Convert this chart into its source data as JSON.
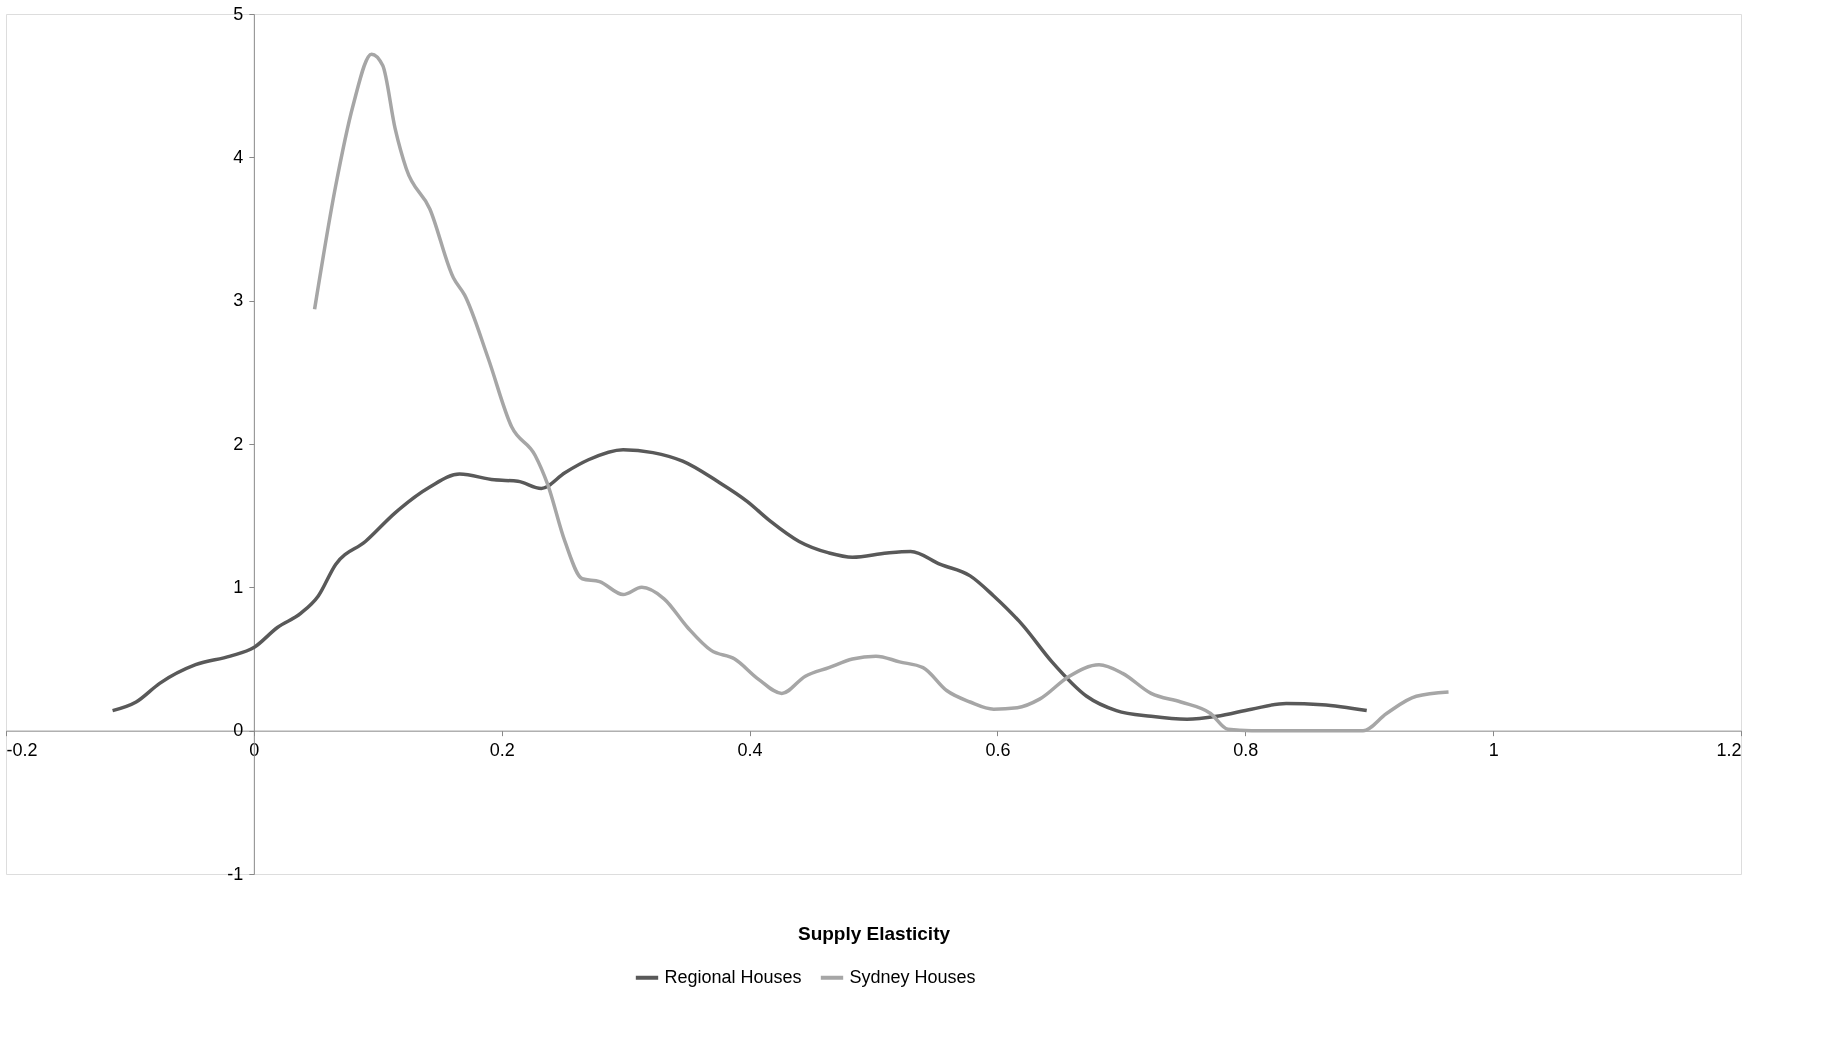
{
  "chart_data": {
    "type": "line",
    "xlabel": "Supply Elasticity",
    "xlim": [
      -0.2,
      1.2
    ],
    "xticks": [
      -0.2,
      0,
      0.2,
      0.4,
      0.6,
      0.8,
      1,
      1.2
    ],
    "ylim": [
      -1,
      5
    ],
    "yticks": [
      -1,
      0,
      1,
      2,
      3,
      4,
      5
    ],
    "grid": false,
    "legend": "bottom",
    "line_style": "solid",
    "marker": "none",
    "series": [
      {
        "name": "Regional Houses",
        "color": "#595959",
        "x": [
          -0.114,
          -0.095,
          -0.076,
          -0.047,
          -0.019,
          0,
          0.019,
          0.038,
          0.052,
          0.066,
          0.09,
          0.114,
          0.142,
          0.166,
          0.194,
          0.213,
          0.232,
          0.251,
          0.27,
          0.298,
          0.322,
          0.346,
          0.374,
          0.398,
          0.417,
          0.44,
          0.464,
          0.483,
          0.511,
          0.53,
          0.554,
          0.578,
          0.597,
          0.62,
          0.644,
          0.672,
          0.696,
          0.724,
          0.753,
          0.777,
          0.805,
          0.833,
          0.862,
          0.898
        ],
        "values": [
          0.14,
          0.2,
          0.33,
          0.46,
          0.52,
          0.58,
          0.72,
          0.82,
          0.94,
          1.16,
          1.32,
          1.52,
          1.7,
          1.79,
          1.75,
          1.74,
          1.69,
          1.8,
          1.89,
          1.96,
          1.94,
          1.88,
          1.74,
          1.6,
          1.46,
          1.32,
          1.24,
          1.21,
          1.24,
          1.25,
          1.16,
          1.08,
          0.94,
          0.74,
          0.48,
          0.24,
          0.14,
          0.1,
          0.08,
          0.1,
          0.15,
          0.19,
          0.18,
          0.14
        ]
      },
      {
        "name": "Sydney Houses",
        "color": "#a6a6a6",
        "x": [
          0.049,
          0.066,
          0.08,
          0.095,
          0.104,
          0.114,
          0.123,
          0.142,
          0.161,
          0.17,
          0.189,
          0.208,
          0.227,
          0.237,
          0.251,
          0.265,
          0.279,
          0.298,
          0.313,
          0.331,
          0.35,
          0.369,
          0.388,
          0.407,
          0.426,
          0.445,
          0.464,
          0.483,
          0.502,
          0.521,
          0.54,
          0.559,
          0.578,
          0.597,
          0.616,
          0.634,
          0.658,
          0.682,
          0.701,
          0.724,
          0.748,
          0.772,
          0.786,
          0.805,
          0.895,
          0.914,
          0.938,
          0.964
        ],
        "values": [
          2.94,
          3.8,
          4.36,
          4.72,
          4.64,
          4.2,
          3.92,
          3.64,
          3.16,
          3.04,
          2.6,
          2.12,
          1.92,
          1.72,
          1.32,
          1.06,
          1.04,
          0.95,
          1.0,
          0.92,
          0.72,
          0.56,
          0.5,
          0.36,
          0.26,
          0.38,
          0.44,
          0.5,
          0.52,
          0.48,
          0.44,
          0.28,
          0.2,
          0.15,
          0.16,
          0.22,
          0.38,
          0.46,
          0.4,
          0.26,
          0.2,
          0.12,
          0.01,
          0,
          0,
          0.12,
          0.24,
          0.27
        ]
      }
    ]
  }
}
